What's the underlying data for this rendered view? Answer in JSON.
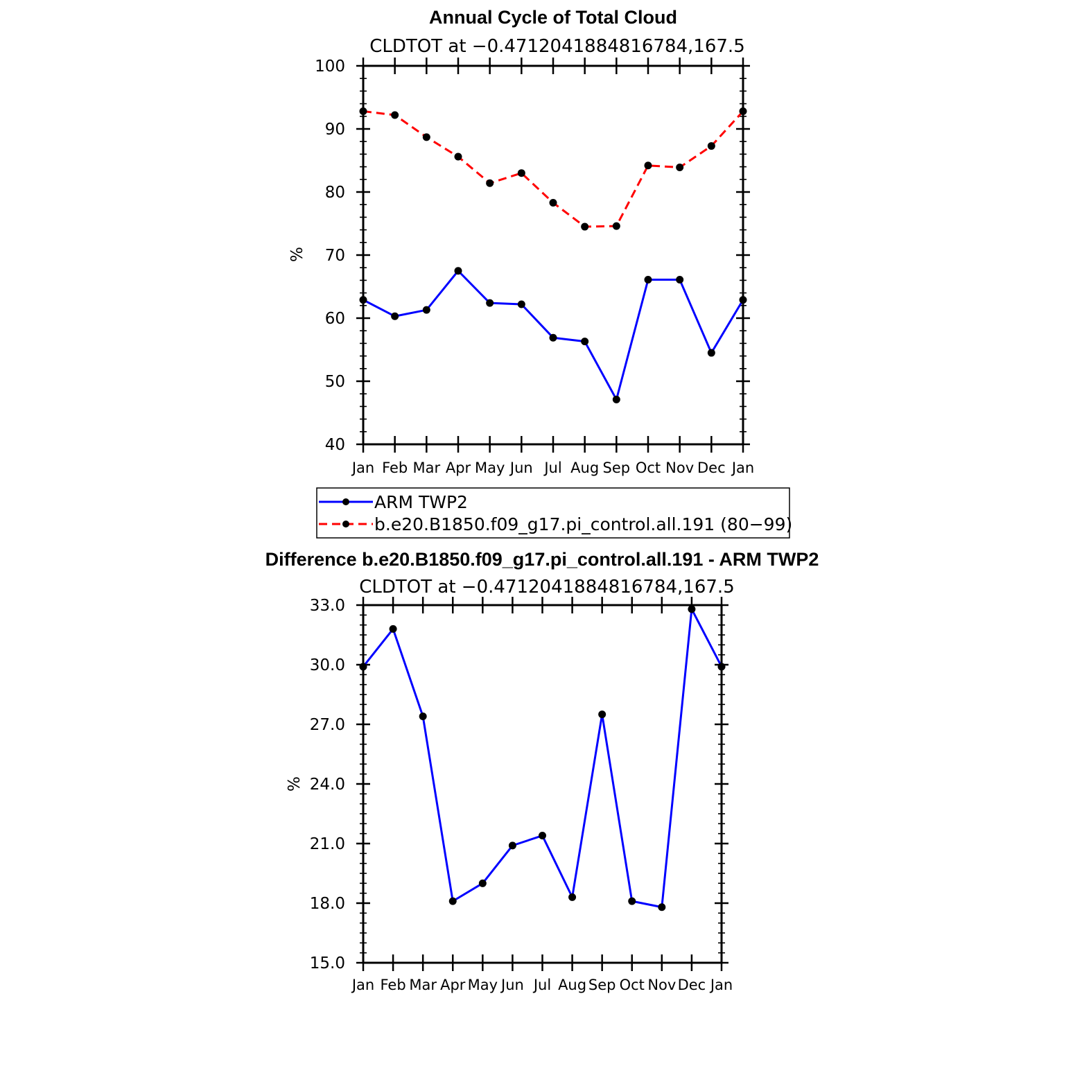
{
  "colors": {
    "obs": "#0000ff",
    "model": "#ff0000",
    "diff": "#0000ff",
    "marker": "#000000"
  },
  "chart_data": [
    {
      "type": "line",
      "title": "Annual Cycle of Total Cloud",
      "subtitle": "CLDTOT at −0.4712041884816784,167.5",
      "xlabel": "",
      "ylabel": "%",
      "categories": [
        "Jan",
        "Feb",
        "Mar",
        "Apr",
        "May",
        "Jun",
        "Jul",
        "Aug",
        "Sep",
        "Oct",
        "Nov",
        "Dec",
        "Jan"
      ],
      "ylim": [
        40,
        100
      ],
      "yticks": [
        40,
        50,
        60,
        70,
        80,
        90,
        100
      ],
      "ytick_labels": [
        "40",
        "50",
        "60",
        "70",
        "80",
        "90",
        "100"
      ],
      "series": [
        {
          "name": "ARM TWP2",
          "style": "solid",
          "color": "#0000ff",
          "values": [
            62.9,
            60.3,
            61.3,
            67.5,
            62.4,
            62.2,
            56.9,
            56.3,
            47.1,
            66.1,
            66.1,
            54.5,
            62.9
          ]
        },
        {
          "name": "b.e20.B1850.f09_g17.pi_control.all.191 (80−99)",
          "style": "dashed",
          "color": "#ff0000",
          "values": [
            92.8,
            92.2,
            88.7,
            85.6,
            81.4,
            83.0,
            78.3,
            74.5,
            74.6,
            84.2,
            83.9,
            87.3,
            92.8
          ]
        }
      ],
      "legend_position": "bottom-center"
    },
    {
      "type": "line",
      "title": "Difference b.e20.B1850.f09_g17.pi_control.all.191 - ARM TWP2",
      "subtitle": "CLDTOT at −0.4712041884816784,167.5",
      "xlabel": "",
      "ylabel": "%",
      "categories": [
        "Jan",
        "Feb",
        "Mar",
        "Apr",
        "May",
        "Jun",
        "Jul",
        "Aug",
        "Sep",
        "Oct",
        "Nov",
        "Dec",
        "Jan"
      ],
      "ylim": [
        15,
        33
      ],
      "yticks": [
        15,
        18,
        21,
        24,
        27,
        30,
        33
      ],
      "ytick_labels": [
        "15.0",
        "18.0",
        "21.0",
        "24.0",
        "27.0",
        "30.0",
        "33.0"
      ],
      "series": [
        {
          "name": "Difference",
          "style": "solid",
          "color": "#0000ff",
          "values": [
            29.9,
            31.8,
            27.4,
            18.1,
            19.0,
            20.9,
            21.4,
            18.3,
            27.5,
            18.1,
            17.8,
            32.8,
            29.9
          ]
        }
      ]
    }
  ]
}
